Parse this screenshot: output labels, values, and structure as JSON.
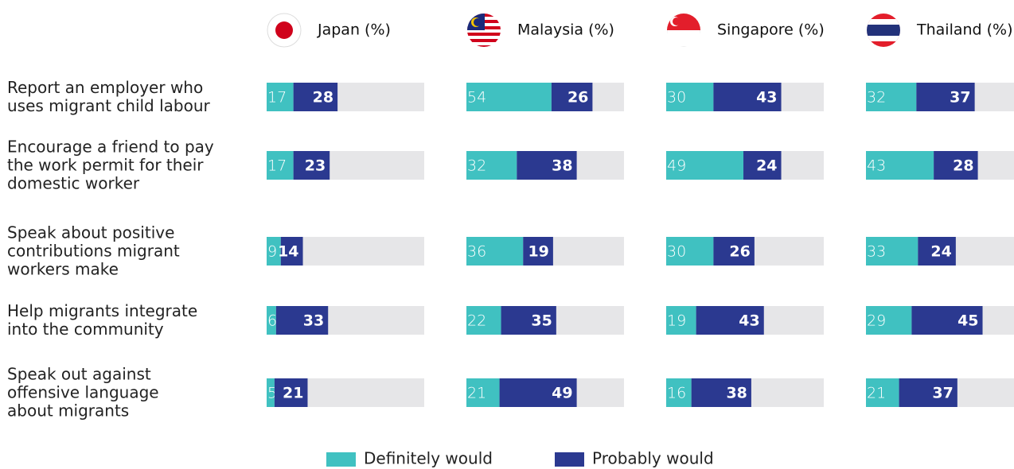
{
  "chart_data": {
    "type": "bar",
    "stacked": true,
    "orientation": "horizontal",
    "categories": [
      "Report an employer who\nuses migrant child labour",
      "Encourage a friend to pay\nthe work permit for their\ndomestic worker",
      "Speak about positive\ncontributions migrant\nworkers make",
      "Help migrants integrate\ninto the community",
      "Speak out against\noffensive language\nabout migrants"
    ],
    "legend": [
      {
        "name": "Definitely would",
        "color": "#40c1c1"
      },
      {
        "name": "Probably would",
        "color": "#2b3990"
      }
    ],
    "xlim": [
      0,
      100
    ],
    "panels": [
      {
        "title": "Japan (%)",
        "series": [
          {
            "values": [
              17,
              17,
              9,
              6,
              5
            ]
          },
          {
            "values": [
              28,
              23,
              14,
              33,
              21
            ]
          }
        ]
      },
      {
        "title": "Malaysia (%)",
        "series": [
          {
            "values": [
              54,
              32,
              36,
              22,
              21
            ]
          },
          {
            "values": [
              26,
              38,
              19,
              35,
              49
            ]
          }
        ]
      },
      {
        "title": "Singapore (%)",
        "series": [
          {
            "values": [
              30,
              49,
              30,
              19,
              16
            ]
          },
          {
            "values": [
              43,
              24,
              26,
              43,
              38
            ]
          }
        ]
      },
      {
        "title": "Thailand (%)",
        "series": [
          {
            "values": [
              32,
              43,
              33,
              29,
              21
            ]
          },
          {
            "values": [
              37,
              28,
              24,
              45,
              37
            ]
          }
        ]
      }
    ]
  }
}
